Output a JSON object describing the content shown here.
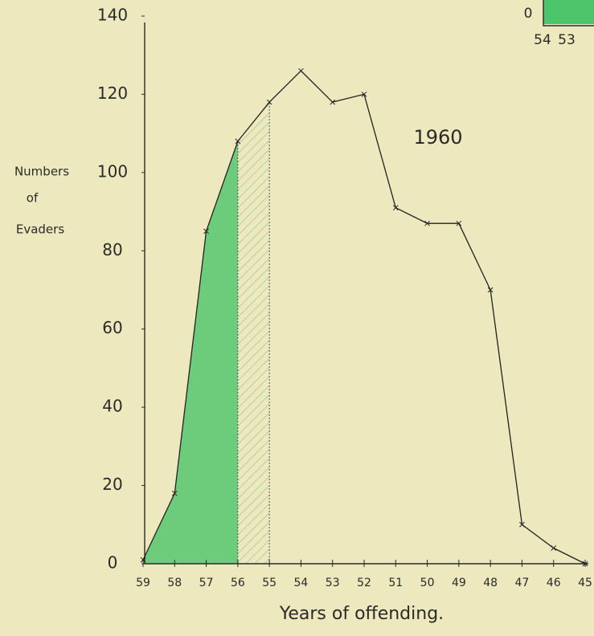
{
  "chart_data": {
    "type": "line",
    "annotation": "1960",
    "y_label_lines": [
      "Numbers",
      "of",
      "Evaders"
    ],
    "x_label": "Years of offending.",
    "categories": [
      "59",
      "58",
      "57",
      "56",
      "55",
      "54",
      "53",
      "52",
      "51",
      "50",
      "49",
      "48",
      "47",
      "46",
      "45"
    ],
    "values": [
      1,
      18,
      85,
      108,
      118,
      126,
      118,
      120,
      91,
      87,
      87,
      70,
      10,
      4,
      0
    ],
    "color": "#222222",
    "ylim": [
      0,
      140
    ],
    "yticks": [
      0,
      20,
      40,
      60,
      80,
      100,
      120,
      140
    ],
    "filled_span": {
      "from": "59",
      "to": "56",
      "color": "#4cc46a"
    },
    "hatched_span": {
      "from": "56",
      "to": "55",
      "color": "#9ccf9a"
    }
  },
  "inset": {
    "ytick": "0",
    "categories": [
      "54",
      "53"
    ],
    "color": "#4cc46a"
  }
}
